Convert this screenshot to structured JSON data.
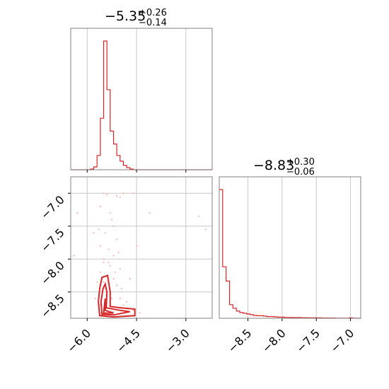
{
  "chart_data": [
    {
      "type": "histogram",
      "panel": "top-left",
      "title_value": "−5.35",
      "title_plus": "+0.26",
      "title_minus": "−0.14",
      "xlim": [
        -6.5,
        -2.2
      ],
      "x_ticks": [
        -6.0,
        -4.5,
        -3.0
      ],
      "y_ticks": [],
      "grid": true,
      "bin_edges": [
        -6.5,
        -5.9,
        -5.8,
        -5.7,
        -5.6,
        -5.5,
        -5.4,
        -5.3,
        -5.2,
        -5.1,
        -5.0,
        -4.9,
        -4.8,
        -4.7,
        -4.6,
        -4.5,
        -2.2
      ],
      "counts": [
        0,
        0.5,
        2,
        10,
        36,
        90,
        56,
        27,
        18,
        10,
        6,
        3,
        1.5,
        0.5,
        0,
        0
      ],
      "color": "#d62728"
    },
    {
      "type": "scatter",
      "panel": "bottom-left",
      "xlim": [
        -6.5,
        -2.2
      ],
      "ylim": [
        -8.9,
        -6.75
      ],
      "x_ticks": [
        -6.0,
        -4.5,
        -3.0
      ],
      "x_tick_labels": [
        "−6.0",
        "−4.5",
        "−3.0"
      ],
      "y_ticks": [
        -7.0,
        -7.5,
        -8.0,
        -8.5
      ],
      "y_tick_labels": [
        "−7.0",
        "−7.5",
        "−8.0",
        "−8.5"
      ],
      "grid": true,
      "points_color": "#f4b0b0",
      "contour_color": "#d62728",
      "points": [
        [
          -5.5,
          -7.0
        ],
        [
          -5.4,
          -7.02
        ],
        [
          -5.1,
          -7.04
        ],
        [
          -5.0,
          -7.06
        ],
        [
          -4.9,
          -7.0
        ],
        [
          -4.6,
          -7.0
        ],
        [
          -4.1,
          -7.3
        ],
        [
          -6.3,
          -7.3
        ],
        [
          -2.6,
          -7.35
        ],
        [
          -2.4,
          -7.55
        ],
        [
          -5.6,
          -7.2
        ],
        [
          -5.3,
          -7.3
        ],
        [
          -5.2,
          -7.5
        ],
        [
          -5.45,
          -7.6
        ],
        [
          -5.1,
          -7.7
        ],
        [
          -5.6,
          -7.8
        ],
        [
          -5.35,
          -7.85
        ],
        [
          -5.2,
          -7.95
        ],
        [
          -5.5,
          -8.05
        ],
        [
          -5.3,
          -8.1
        ],
        [
          -5.0,
          -8.15
        ],
        [
          -5.6,
          -8.2
        ],
        [
          -5.4,
          -8.25
        ],
        [
          -5.2,
          -8.3
        ],
        [
          -5.7,
          -8.35
        ],
        [
          -5.1,
          -8.4
        ],
        [
          -5.45,
          -8.45
        ],
        [
          -5.3,
          -8.5
        ],
        [
          -5.55,
          -8.55
        ],
        [
          -5.0,
          -8.6
        ],
        [
          -4.8,
          -8.65
        ],
        [
          -5.6,
          -8.7
        ],
        [
          -5.4,
          -8.75
        ],
        [
          -5.2,
          -8.8
        ],
        [
          -4.6,
          -8.78
        ],
        [
          -4.4,
          -8.82
        ],
        [
          -5.65,
          -7.55
        ],
        [
          -5.25,
          -7.4
        ],
        [
          -5.05,
          -7.9
        ],
        [
          -5.5,
          -8.0
        ],
        [
          -4.95,
          -8.45
        ],
        [
          -5.75,
          -8.6
        ],
        [
          -5.35,
          -8.05
        ],
        [
          -5.15,
          -8.2
        ],
        [
          -5.5,
          -8.35
        ],
        [
          -5.25,
          -8.6
        ],
        [
          -4.9,
          -8.7
        ],
        [
          -5.6,
          -8.82
        ],
        [
          -6.4,
          -7.95
        ],
        [
          -4.5,
          -7.8
        ],
        [
          -4.7,
          -8.3
        ],
        [
          -5.8,
          -7.6
        ]
      ],
      "contours": [
        [
          [
            -5.62,
            -8.45
          ],
          [
            -5.55,
            -8.28
          ],
          [
            -5.38,
            -8.25
          ],
          [
            -5.3,
            -8.5
          ],
          [
            -5.3,
            -8.72
          ],
          [
            -5.0,
            -8.74
          ],
          [
            -4.55,
            -8.76
          ],
          [
            -4.55,
            -8.86
          ],
          [
            -5.2,
            -8.88
          ],
          [
            -5.62,
            -8.86
          ],
          [
            -5.66,
            -8.65
          ]
        ],
        [
          [
            -5.52,
            -8.45
          ],
          [
            -5.45,
            -8.38
          ],
          [
            -5.4,
            -8.5
          ],
          [
            -5.42,
            -8.74
          ],
          [
            -5.0,
            -8.78
          ],
          [
            -4.7,
            -8.8
          ],
          [
            -5.2,
            -8.85
          ],
          [
            -5.55,
            -8.84
          ],
          [
            -5.58,
            -8.65
          ]
        ],
        [
          [
            -5.45,
            -8.6
          ],
          [
            -5.45,
            -8.78
          ],
          [
            -5.2,
            -8.82
          ],
          [
            -5.5,
            -8.82
          ]
        ]
      ]
    },
    {
      "type": "histogram",
      "panel": "bottom-right",
      "title_value": "−8.83",
      "title_plus": "+0.30",
      "title_minus": "−0.06",
      "xlim": [
        -8.92,
        -6.85
      ],
      "x_ticks": [
        -8.5,
        -8.0,
        -7.5,
        -7.0
      ],
      "x_tick_labels": [
        "−8.5",
        "−8.0",
        "−7.5",
        "−7.0"
      ],
      "y_ticks": [],
      "grid": true,
      "bin_edges": [
        -8.92,
        -8.87,
        -8.82,
        -8.77,
        -8.72,
        -8.67,
        -8.62,
        -8.57,
        -8.52,
        -8.47,
        -8.42,
        -8.37,
        -8.32,
        -8.27,
        -8.22,
        -8.17,
        -8.12,
        -8.07,
        -8.02,
        -7.97,
        -7.92,
        -7.87,
        -7.82,
        -7.77,
        -7.72,
        -7.67,
        -7.62,
        -7.57,
        -7.52,
        -7.47,
        -7.42,
        -7.37,
        -7.32,
        -7.27,
        -7.22,
        -7.17,
        -7.12,
        -7.07,
        -7.02,
        -6.97,
        -6.92,
        -6.85
      ],
      "counts": [
        90,
        36,
        26,
        9.5,
        7,
        5,
        4,
        3.5,
        3,
        2.5,
        2,
        1.8,
        1.8,
        1.5,
        1.2,
        1.2,
        1,
        0.8,
        0.8,
        0.6,
        0.6,
        0.5,
        0.5,
        0.5,
        0.4,
        0.4,
        0.3,
        0.3,
        0.3,
        0.3,
        0.2,
        0.2,
        0.2,
        0.2,
        0.1,
        0.1,
        0.1,
        0.1,
        0.3,
        0.1,
        0
      ],
      "color": "#d62728"
    }
  ]
}
